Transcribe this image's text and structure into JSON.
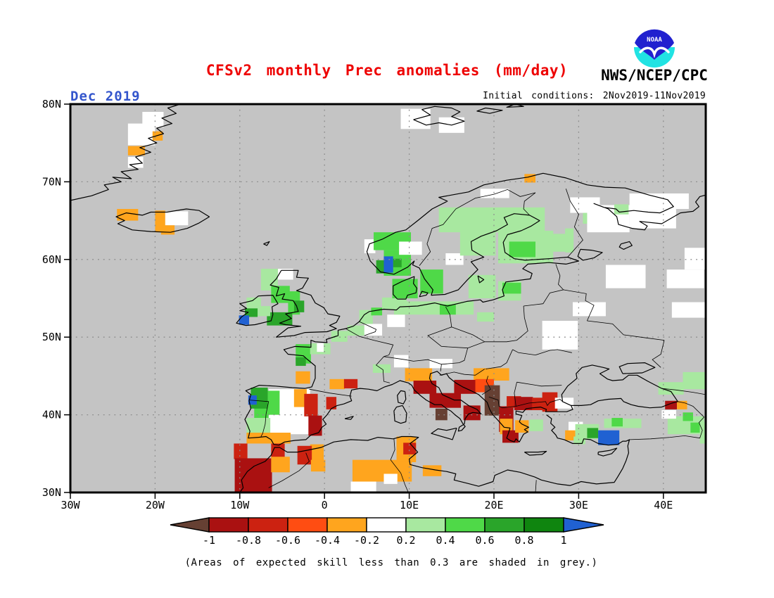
{
  "header": {
    "title": "CFSv2 monthly Prec anomalies (mm/day)",
    "date_label": "Dec 2019",
    "initial_conditions": "Initial conditions: 2Nov2019-11Nov2019",
    "agency": "NWS/NCEP/CPC",
    "logo_text": "NOAA"
  },
  "caption": "(Areas of expected skill less than 0.3 are shaded in grey.)",
  "colors": {
    "title": "#ee0000",
    "date_label": "#3355cc",
    "map_background": "#c4c4c4",
    "grid": "#8c8c8c",
    "coast": "#000000",
    "logo_blue": "#2121cf",
    "logo_cyan": "#21e3e3"
  },
  "axes": {
    "lat_ticks": [
      {
        "label": "80N",
        "lat": 80
      },
      {
        "label": "70N",
        "lat": 70
      },
      {
        "label": "60N",
        "lat": 60
      },
      {
        "label": "50N",
        "lat": 50
      },
      {
        "label": "40N",
        "lat": 40
      },
      {
        "label": "30N",
        "lat": 30
      }
    ],
    "lon_ticks": [
      {
        "label": "30W",
        "lon": -30
      },
      {
        "label": "20W",
        "lon": -20
      },
      {
        "label": "10W",
        "lon": -10
      },
      {
        "label": "0",
        "lon": 0
      },
      {
        "label": "10E",
        "lon": 10
      },
      {
        "label": "20E",
        "lon": 20
      },
      {
        "label": "30E",
        "lon": 30
      },
      {
        "label": "40E",
        "lon": 40
      }
    ]
  },
  "legend": {
    "tick_labels": [
      "-1",
      "-0.8",
      "-0.6",
      "-0.4",
      "-0.2",
      "0.2",
      "0.4",
      "0.6",
      "0.8",
      "1"
    ],
    "box_colors": [
      "#aa1111",
      "#cc2211",
      "#ff4d12",
      "#ffa51e",
      "#ffffff",
      "#a8e8a0",
      "#4fd948",
      "#2aa52a",
      "#0f850f"
    ],
    "left_arrow_color": "#664033",
    "right_arrow_color": "#2061d2"
  },
  "chart_data": {
    "type": "heatmap",
    "title": "CFSv2 monthly Prec anomalies (mm/day)",
    "units": "mm/day",
    "lon_range": [
      -30,
      45
    ],
    "lat_range": [
      30,
      80
    ],
    "levels": {
      "-5": {
        "color": "#664033",
        "range": "< -1"
      },
      "-4": {
        "color": "#aa1111",
        "range": "-1 to -0.8"
      },
      "-3": {
        "color": "#cc2211",
        "range": "-0.8 to -0.6"
      },
      "-2": {
        "color": "#ff4d12",
        "range": "-0.6 to -0.4"
      },
      "-1": {
        "color": "#ffa51e",
        "range": "-0.4 to -0.2"
      },
      "0": {
        "color": "#ffffff",
        "range": "-0.2 to 0.2"
      },
      "1": {
        "color": "#a8e8a0",
        "range": "0.2 to 0.4"
      },
      "2": {
        "color": "#4fd948",
        "range": "0.4 to 0.6"
      },
      "3": {
        "color": "#2aa52a",
        "range": "0.6 to 0.8"
      },
      "4": {
        "color": "#0f850f",
        "range": "0.8 to 1"
      },
      "5": {
        "color": "#2061d2",
        "range": "> 1"
      }
    },
    "cells": [
      [
        -21.5,
        77,
        2.5,
        2,
        0
      ],
      [
        -23.2,
        74.7,
        3.2,
        2.8,
        0
      ],
      [
        -20.3,
        75.3,
        1.2,
        1.2,
        -1
      ],
      [
        -23.2,
        73.4,
        2,
        1.2,
        -1
      ],
      [
        -23.2,
        71.8,
        1.8,
        1.4,
        0
      ],
      [
        -24.5,
        65,
        2.5,
        1.5,
        -1
      ],
      [
        -20,
        63.5,
        1.2,
        2.8,
        -1
      ],
      [
        -18.8,
        64.4,
        2.7,
        1.8,
        0
      ],
      [
        -19.3,
        63.2,
        1.6,
        1.2,
        -1
      ],
      [
        9,
        76.8,
        3.5,
        2.6,
        0
      ],
      [
        13.5,
        76.3,
        3,
        2,
        0
      ],
      [
        -7.5,
        56,
        2,
        2.8,
        1
      ],
      [
        -5.5,
        57.4,
        1.8,
        1.4,
        0
      ],
      [
        -6.3,
        54.4,
        2.2,
        2.2,
        2
      ],
      [
        -4.3,
        52.9,
        1.4,
        3,
        2
      ],
      [
        -3.6,
        53.2,
        1.2,
        1.5,
        3
      ],
      [
        -6.8,
        51.5,
        3,
        1.7,
        3
      ],
      [
        -9.2,
        53.6,
        1.7,
        1.5,
        1
      ],
      [
        -7.9,
        52.7,
        1.5,
        1.3,
        1
      ],
      [
        -9.4,
        52.6,
        1.5,
        1.1,
        3
      ],
      [
        -10.1,
        51.6,
        1.2,
        1.2,
        5
      ],
      [
        -3.4,
        46.6,
        1.8,
        2.5,
        2
      ],
      [
        -3.4,
        46.3,
        1.2,
        1.1,
        3
      ],
      [
        -1.7,
        47.8,
        2.4,
        1.4,
        1
      ],
      [
        -0.9,
        48.1,
        0.8,
        1.1,
        0
      ],
      [
        0.8,
        49.4,
        1.9,
        1.4,
        1
      ],
      [
        2.7,
        50.2,
        2,
        1.3,
        1
      ],
      [
        4.7,
        50.2,
        2.1,
        1.5,
        0
      ],
      [
        4.1,
        51.7,
        1.6,
        1.8,
        1
      ],
      [
        5.5,
        52.8,
        1.3,
        1,
        2
      ],
      [
        6.8,
        53.6,
        2.9,
        1.5,
        1
      ],
      [
        7.4,
        51.3,
        2.1,
        1.6,
        0
      ],
      [
        -3.4,
        44,
        1.7,
        1.6,
        -1
      ],
      [
        0.6,
        43.3,
        1.8,
        1.3,
        -1
      ],
      [
        2.3,
        43.4,
        1.6,
        1.2,
        -3
      ],
      [
        4.7,
        60.8,
        1.3,
        1.8,
        0
      ],
      [
        5.8,
        61.2,
        4.4,
        2.3,
        2
      ],
      [
        7,
        57.9,
        3.2,
        3.3,
        2
      ],
      [
        6.1,
        58.2,
        1,
        1.7,
        3
      ],
      [
        8.1,
        59,
        1,
        1.1,
        3
      ],
      [
        7,
        58.3,
        1.1,
        2.1,
        5
      ],
      [
        8.8,
        60.6,
        2.7,
        1.7,
        0
      ],
      [
        8,
        55,
        3,
        2.5,
        2
      ],
      [
        11.3,
        55.6,
        2.7,
        3.1,
        2
      ],
      [
        8.2,
        52.9,
        9.4,
        1.7,
        1
      ],
      [
        13.6,
        52.9,
        1.9,
        1.3,
        2
      ],
      [
        14.3,
        59.3,
        2.1,
        1.5,
        0
      ],
      [
        16,
        60.5,
        4.2,
        3.2,
        1
      ],
      [
        13.5,
        63.5,
        12.5,
        3.2,
        1
      ],
      [
        17,
        55,
        3.2,
        3,
        1
      ],
      [
        20.5,
        54.7,
        2.7,
        2.5,
        1
      ],
      [
        21,
        55.6,
        2.2,
        1.4,
        2
      ],
      [
        18,
        52,
        2,
        1.2,
        1
      ],
      [
        18.4,
        67.9,
        3.4,
        1.2,
        0
      ],
      [
        23.6,
        69.9,
        1.3,
        1.1,
        -1
      ],
      [
        20.5,
        59.5,
        6.5,
        4.2,
        1
      ],
      [
        21.8,
        60.3,
        3.1,
        2,
        2
      ],
      [
        26.5,
        61,
        2.5,
        2.3,
        1
      ],
      [
        28.4,
        60.9,
        1,
        3.1,
        1
      ],
      [
        30.5,
        64.6,
        1.5,
        1.6,
        1
      ],
      [
        29,
        66,
        3.5,
        2,
        0
      ],
      [
        31,
        63.5,
        5,
        3.5,
        0
      ],
      [
        36,
        64,
        5.5,
        2.5,
        0
      ],
      [
        36,
        66.5,
        7,
        2,
        0
      ],
      [
        34.2,
        65.8,
        1.7,
        1.3,
        1
      ],
      [
        33.2,
        56.3,
        4.7,
        3,
        0
      ],
      [
        40.4,
        56.3,
        4.4,
        2.4,
        0
      ],
      [
        42.5,
        58.7,
        2.5,
        2.8,
        0
      ],
      [
        29.3,
        52.7,
        3.9,
        1.8,
        0
      ],
      [
        25.7,
        48.4,
        4.2,
        3.7,
        0
      ],
      [
        41,
        52.5,
        4,
        2,
        0
      ],
      [
        -6.6,
        37.5,
        4.9,
        5.8,
        0
      ],
      [
        -9.2,
        37.4,
        2.8,
        2.2,
        1
      ],
      [
        -8.3,
        39.6,
        1.7,
        2,
        2
      ],
      [
        -8.7,
        40.8,
        2,
        2.7,
        3
      ],
      [
        -6.7,
        40,
        1.4,
        3.1,
        2
      ],
      [
        -9,
        41.3,
        1,
        1.2,
        5
      ],
      [
        -3.6,
        41,
        1.5,
        2.3,
        -1
      ],
      [
        -2.4,
        39.8,
        1.6,
        2.9,
        -3
      ],
      [
        -1.9,
        37.3,
        1.6,
        2.6,
        -4
      ],
      [
        0.2,
        40.7,
        1.2,
        1.6,
        -3
      ],
      [
        -9.2,
        36.3,
        5.2,
        1.4,
        -1
      ],
      [
        -1.7,
        34,
        1.6,
        2.2,
        -1
      ],
      [
        -10.7,
        34.3,
        1.6,
        2,
        -3
      ],
      [
        -10.6,
        30,
        4.4,
        4.4,
        -4
      ],
      [
        -6.3,
        34.2,
        1.6,
        2.1,
        -3
      ],
      [
        -6.3,
        32.6,
        2.2,
        2,
        -1
      ],
      [
        -3.2,
        33.6,
        1.7,
        2.4,
        -3
      ],
      [
        -1.6,
        32.7,
        1.7,
        1.5,
        -1
      ],
      [
        3.3,
        31.4,
        7,
        2.8,
        -1
      ],
      [
        3.1,
        30,
        3,
        1.4,
        0
      ],
      [
        7,
        31.1,
        1.6,
        1.3,
        0
      ],
      [
        8.5,
        33.9,
        2.3,
        3.3,
        -1
      ],
      [
        9.3,
        34.9,
        1.5,
        1.5,
        -3
      ],
      [
        11.6,
        32.1,
        2.2,
        1.4,
        -1
      ],
      [
        5.7,
        45.4,
        2.1,
        1.1,
        1
      ],
      [
        8.2,
        46.1,
        1.7,
        1.6,
        0
      ],
      [
        9.5,
        44.3,
        3.2,
        1.7,
        -1
      ],
      [
        12.4,
        46,
        2.7,
        1.2,
        0
      ],
      [
        10.5,
        42.7,
        2.7,
        1.7,
        -4
      ],
      [
        12.4,
        40.9,
        3.7,
        1.9,
        -4
      ],
      [
        13.1,
        39.3,
        1.4,
        1.5,
        -5
      ],
      [
        16.4,
        39.3,
        2,
        1.9,
        -4
      ],
      [
        17.6,
        44.4,
        4.2,
        1.6,
        -1
      ],
      [
        15.3,
        42.7,
        2.6,
        1.8,
        -4
      ],
      [
        17.8,
        42.9,
        2.2,
        1.7,
        -2
      ],
      [
        18.9,
        39.9,
        1.8,
        3.9,
        -5
      ],
      [
        20.6,
        37.8,
        1.7,
        3.3,
        -4
      ],
      [
        21.5,
        40.9,
        1.7,
        1.5,
        -3
      ],
      [
        22.4,
        40.6,
        2.2,
        1.7,
        -4
      ],
      [
        24.5,
        40.6,
        1.3,
        1.6,
        -3
      ],
      [
        25.7,
        40.4,
        1.8,
        2.5,
        -3
      ],
      [
        27.2,
        40.8,
        2.2,
        1.4,
        0
      ],
      [
        20.7,
        37.5,
        1.5,
        2,
        -1
      ],
      [
        21,
        36.4,
        1.9,
        1.6,
        -4
      ],
      [
        22.5,
        37.7,
        1.6,
        1.6,
        -1
      ],
      [
        24.2,
        37.9,
        1.6,
        1.5,
        1
      ],
      [
        28.8,
        37.7,
        1.7,
        1.4,
        0
      ],
      [
        28.4,
        36.7,
        1.2,
        1.3,
        -1
      ],
      [
        29.4,
        36.2,
        1.4,
        1,
        1
      ],
      [
        29.6,
        36.9,
        2.8,
        1.9,
        1
      ],
      [
        31,
        37,
        1.3,
        1.3,
        3
      ],
      [
        32.3,
        36.1,
        2.5,
        1.9,
        5
      ],
      [
        33,
        38.3,
        4.4,
        1.2,
        1
      ],
      [
        33.9,
        38.5,
        1.3,
        1.1,
        2
      ],
      [
        40.5,
        37.5,
        4.3,
        2.3,
        1
      ],
      [
        42.3,
        39.2,
        1.2,
        1.1,
        2
      ],
      [
        43.2,
        37.7,
        1.6,
        1.3,
        2
      ],
      [
        39.8,
        39.5,
        1.7,
        1.1,
        0
      ],
      [
        40.2,
        40.7,
        1.4,
        1.1,
        -4
      ],
      [
        41.6,
        40.7,
        1.2,
        1.1,
        -1
      ],
      [
        42.3,
        43.3,
        2.8,
        2.2,
        1
      ],
      [
        39.4,
        42.6,
        3,
        1.6,
        1
      ],
      [
        44.3,
        36.3,
        0.7,
        2.8,
        1
      ]
    ]
  }
}
